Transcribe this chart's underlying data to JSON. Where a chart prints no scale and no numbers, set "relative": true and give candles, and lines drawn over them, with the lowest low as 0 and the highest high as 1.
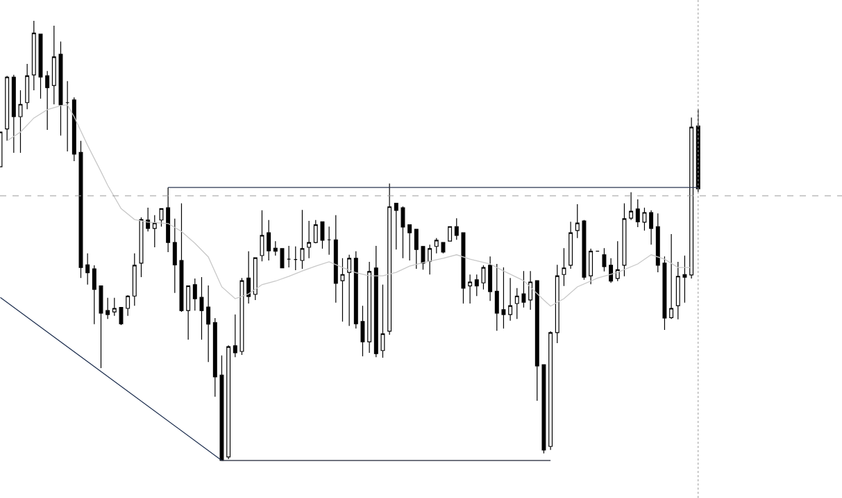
{
  "chart_data": {
    "type": "candlestick",
    "relative": true,
    "categories": [
      null,
      null,
      null,
      null,
      null,
      null,
      null,
      null,
      null,
      null,
      null,
      null,
      null,
      null,
      null,
      null,
      null,
      null,
      null,
      null,
      null,
      null,
      null,
      null,
      null,
      null,
      null,
      null,
      null,
      null,
      null,
      null,
      null,
      null,
      null,
      null,
      null,
      null,
      null,
      null,
      null,
      null,
      null,
      null,
      null,
      null,
      null,
      null,
      null,
      null,
      null,
      null,
      null,
      null,
      null,
      null,
      null,
      null,
      null,
      null,
      null,
      null,
      null,
      null,
      null,
      null,
      null,
      null,
      null,
      null,
      null,
      null,
      null,
      null,
      null,
      null,
      null,
      null,
      null,
      null,
      null,
      null,
      null,
      null,
      null,
      null,
      null,
      null,
      null,
      null,
      null,
      null,
      null,
      null,
      null,
      null,
      null,
      null,
      null,
      null,
      null,
      null,
      null,
      null,
      null
    ],
    "ohlc": [
      [
        0.668,
        0.747,
        0.668,
        0.747
      ],
      [
        0.754,
        0.875,
        0.727,
        0.872
      ],
      [
        0.872,
        0.877,
        0.7,
        0.782
      ],
      [
        0.782,
        0.842,
        0.7,
        0.81
      ],
      [
        0.814,
        0.902,
        0.799,
        0.875
      ],
      [
        0.877,
        1.0,
        0.842,
        0.972
      ],
      [
        0.97,
        0.97,
        0.823,
        0.872
      ],
      [
        0.875,
        0.886,
        0.752,
        0.848
      ],
      [
        0.853,
        0.989,
        0.81,
        0.918
      ],
      [
        0.924,
        0.953,
        0.739,
        0.809
      ],
      [
        0.814,
        0.863,
        0.703,
        0.814
      ],
      [
        0.82,
        0.826,
        0.681,
        0.697
      ],
      [
        0.701,
        0.727,
        0.415,
        0.439
      ],
      [
        0.445,
        0.471,
        0.4,
        0.427
      ],
      [
        0.436,
        0.444,
        0.31,
        0.389
      ],
      [
        0.397,
        0.397,
        0.21,
        0.335
      ],
      [
        0.341,
        0.37,
        0.322,
        0.332
      ],
      [
        0.338,
        0.37,
        0.329,
        0.346
      ],
      [
        0.348,
        0.349,
        0.308,
        0.311
      ],
      [
        0.346,
        0.376,
        0.329,
        0.374
      ],
      [
        0.374,
        0.471,
        0.352,
        0.444
      ],
      [
        0.449,
        0.553,
        0.417,
        0.548
      ],
      [
        0.547,
        0.575,
        0.521,
        0.528
      ],
      [
        0.528,
        0.558,
        0.485,
        0.54
      ],
      [
        0.547,
        0.573,
        0.532,
        0.573
      ],
      [
        0.575,
        0.621,
        0.474,
        0.496
      ],
      [
        0.496,
        0.55,
        0.381,
        0.445
      ],
      [
        0.455,
        0.585,
        0.338,
        0.341
      ],
      [
        0.341,
        0.397,
        0.275,
        0.397
      ],
      [
        0.4,
        0.414,
        0.341,
        0.368
      ],
      [
        0.371,
        0.417,
        0.275,
        0.341
      ],
      [
        0.349,
        0.398,
        0.224,
        0.31
      ],
      [
        0.314,
        0.324,
        0.145,
        0.19
      ],
      [
        0.194,
        0.239,
        0,
        0
      ],
      [
        0.008,
        0.262,
        0.003,
        0.259
      ],
      [
        0.261,
        0.332,
        0.235,
        0.245
      ],
      [
        0.248,
        0.415,
        0.24,
        0.409
      ],
      [
        0.415,
        0.476,
        0.357,
        0.373
      ],
      [
        0.378,
        0.461,
        0.365,
        0.461
      ],
      [
        0.466,
        0.569,
        0.453,
        0.512
      ],
      [
        0.518,
        0.547,
        0.455,
        0.477
      ],
      [
        0.483,
        0.499,
        0.466,
        0.476
      ],
      [
        0.482,
        0.483,
        0.438,
        0.438
      ],
      [
        0.458,
        0.488,
        0.439,
        0.458
      ],
      [
        0.457,
        0.487,
        0.433,
        0.457
      ],
      [
        0.455,
        0.57,
        0.436,
        0.482
      ],
      [
        0.485,
        0.545,
        0.46,
        0.496
      ],
      [
        0.496,
        0.547,
        0.494,
        0.536
      ],
      [
        0.543,
        0.543,
        0.482,
        0.501
      ],
      [
        0.502,
        0.532,
        0.468,
        0.502
      ],
      [
        0.502,
        0.558,
        0.359,
        0.403
      ],
      [
        0.409,
        0.46,
        0.316,
        0.423
      ],
      [
        0.428,
        0.468,
        0.306,
        0.46
      ],
      [
        0.46,
        0.476,
        0.3,
        0.311
      ],
      [
        0.316,
        0.352,
        0.237,
        0.27
      ],
      [
        0.27,
        0.452,
        0.245,
        0.43
      ],
      [
        0.438,
        0.488,
        0.235,
        0.243
      ],
      [
        0.25,
        0.4,
        0.234,
        0.288
      ],
      [
        0.294,
        0.63,
        0.286,
        0.577
      ],
      [
        0.585,
        0.585,
        0.48,
        0.569
      ],
      [
        0.575,
        0.578,
        0.46,
        0.531
      ],
      [
        0.536,
        0.536,
        0.455,
        0.518
      ],
      [
        0.526,
        0.526,
        0.436,
        0.48
      ],
      [
        0.487,
        0.487,
        0.434,
        0.449
      ],
      [
        0.453,
        0.491,
        0.423,
        0.482
      ],
      [
        0.487,
        0.506,
        0.471,
        0.501
      ],
      [
        0.496,
        0.496,
        0.471,
        0.474
      ],
      [
        0.499,
        0.532,
        0.499,
        0.532
      ],
      [
        0.532,
        0.551,
        0.502,
        0.512
      ],
      [
        0.518,
        0.518,
        0.357,
        0.392
      ],
      [
        0.397,
        0.423,
        0.357,
        0.406
      ],
      [
        0.411,
        0.423,
        0.374,
        0.397
      ],
      [
        0.404,
        0.444,
        0.389,
        0.439
      ],
      [
        0.444,
        0.464,
        0.363,
        0.384
      ],
      [
        0.385,
        0.447,
        0.295,
        0.335
      ],
      [
        0.343,
        0.439,
        0.3,
        0.332
      ],
      [
        0.332,
        0.415,
        0.318,
        0.352
      ],
      [
        0.357,
        0.392,
        0.322,
        0.374
      ],
      [
        0.379,
        0.431,
        0.348,
        0.36
      ],
      [
        0.365,
        0.431,
        0.343,
        0.406
      ],
      [
        0.409,
        0.409,
        0.136,
        0.215
      ],
      [
        0.218,
        0.218,
        0.016,
        0.024
      ],
      [
        0.032,
        0.294,
        0.024,
        0.291
      ],
      [
        0.291,
        0.445,
        0.267,
        0.42
      ],
      [
        0.423,
        0.483,
        0.397,
        0.438
      ],
      [
        0.444,
        0.543,
        0.436,
        0.518
      ],
      [
        0.523,
        0.583,
        0.506,
        0.54
      ],
      [
        0.545,
        0.547,
        0.411,
        0.417
      ],
      [
        0.42,
        0.482,
        0.401,
        0.476
      ],
      [
        0.476,
        0.476,
        0.476,
        0.476
      ],
      [
        0.468,
        0.483,
        0.43,
        0.441
      ],
      [
        0.444,
        0.46,
        0.404,
        0.408
      ],
      [
        0.414,
        0.499,
        0.408,
        0.434
      ],
      [
        0.444,
        0.585,
        0.419,
        0.55
      ],
      [
        0.551,
        0.61,
        0.547,
        0.567
      ],
      [
        0.572,
        0.594,
        0.531,
        0.543
      ],
      [
        0.542,
        0.575,
        0.523,
        0.564
      ],
      [
        0.564,
        0.569,
        0.491,
        0.528
      ],
      [
        0.532,
        0.562,
        0.428,
        0.444
      ],
      [
        0.449,
        0.464,
        0.297,
        0.324
      ],
      [
        0.325,
        0.515,
        0.322,
        0.346
      ],
      [
        0.352,
        0.452,
        0.321,
        0.419
      ],
      [
        0.423,
        0.466,
        0.359,
        0.417
      ],
      [
        0.422,
        0.78,
        0.414,
        0.758
      ],
      [
        0.761,
        0.799,
        0.61,
        0.618
      ]
    ],
    "series": [
      {
        "type": "line",
        "color": "#c8c8c8",
        "values": [
          null,
          0.727,
          null,
          0.747,
          null,
          0.779,
          null,
          0.798,
          null,
          0.807,
          0.809,
          0.782,
          null,
          0.717,
          null,
          0.657,
          0.626,
          null,
          0.573,
          null,
          0.548,
          null,
          0.542,
          null,
          0.54,
          0.539,
          null,
          0.521,
          null,
          0.494,
          null,
          0.463,
          null,
          0.395,
          null,
          0.368,
          null,
          0.379,
          null,
          0.4,
          null,
          0.408,
          null,
          0.419,
          null,
          0.431,
          null,
          0.442,
          null,
          0.452,
          null,
          0.439,
          null,
          0.427,
          null,
          0.42,
          null,
          0.42,
          null,
          0.428,
          null,
          0.442,
          null,
          0.45,
          null,
          null,
          0.46,
          null,
          0.468,
          null,
          0.458,
          null,
          null,
          0.447,
          null,
          0.431,
          null,
          null,
          0.409,
          null,
          null,
          0.365,
          0.351,
          null,
          0.368,
          null,
          0.395,
          null,
          null,
          0.415,
          null,
          null,
          0.428,
          null,
          null,
          0.447,
          null,
          0.468,
          null,
          0.458,
          null,
          0.439,
          null,
          0.439,
          null
        ]
      },
      {
        "type": "line",
        "color": "#1f3050",
        "values": [
          0.371,
          null,
          null,
          null,
          null,
          null,
          null,
          null,
          null,
          null,
          null,
          null,
          null,
          null,
          null,
          null,
          null,
          null,
          null,
          null,
          null,
          null,
          null,
          null,
          null,
          null,
          null,
          null,
          null,
          null,
          null,
          null,
          null,
          0,
          null,
          null,
          null,
          null,
          null,
          null,
          null,
          null,
          null,
          null,
          null,
          null,
          null,
          null,
          null,
          null,
          null,
          null,
          null,
          null,
          null,
          null,
          null,
          null,
          null,
          null,
          null,
          null,
          null,
          null,
          null,
          null,
          null,
          null,
          null,
          null,
          null,
          null,
          null,
          null,
          null,
          null,
          null,
          null,
          null,
          null,
          null,
          null,
          null,
          null,
          null,
          null,
          null,
          null,
          null,
          null,
          null,
          null,
          null,
          null,
          null,
          null,
          null,
          null,
          null,
          null,
          null,
          null,
          null,
          null,
          null
        ]
      },
      {
        "type": "line",
        "color": "#2a3550",
        "values": [
          null,
          null,
          null,
          null,
          null,
          null,
          null,
          null,
          null,
          null,
          null,
          null,
          null,
          null,
          null,
          null,
          null,
          null,
          null,
          null,
          null,
          null,
          null,
          null,
          null,
          0.621,
          null,
          null,
          null,
          null,
          null,
          null,
          null,
          null,
          null,
          null,
          null,
          null,
          null,
          null,
          null,
          null,
          null,
          null,
          null,
          null,
          null,
          null,
          null,
          null,
          null,
          null,
          null,
          null,
          null,
          null,
          null,
          null,
          null,
          null,
          null,
          null,
          null,
          null,
          null,
          null,
          null,
          null,
          null,
          null,
          null,
          null,
          null,
          null,
          null,
          null,
          null,
          null,
          null,
          null,
          null,
          null,
          null,
          null,
          null,
          null,
          null,
          null,
          null,
          null,
          null,
          null,
          null,
          null,
          null,
          null,
          null,
          null,
          null,
          null,
          null,
          null,
          null,
          null,
          0.621
        ]
      },
      {
        "type": "line",
        "color": "#404654",
        "values": [
          null,
          null,
          null,
          null,
          null,
          null,
          null,
          null,
          null,
          null,
          null,
          null,
          null,
          null,
          null,
          null,
          null,
          null,
          null,
          null,
          null,
          null,
          null,
          null,
          null,
          null,
          null,
          null,
          null,
          null,
          null,
          null,
          null,
          0,
          null,
          null,
          null,
          null,
          null,
          null,
          null,
          null,
          null,
          null,
          null,
          null,
          null,
          null,
          null,
          null,
          null,
          null,
          null,
          null,
          null,
          null,
          null,
          null,
          null,
          null,
          null,
          null,
          null,
          null,
          null,
          null,
          null,
          null,
          null,
          null,
          null,
          null,
          null,
          null,
          null,
          null,
          null,
          null,
          null,
          null,
          null,
          null,
          0,
          null,
          null,
          null,
          null,
          null,
          null,
          null,
          null,
          null,
          null,
          null,
          null,
          null,
          null,
          null,
          null,
          null,
          null,
          null,
          null,
          null,
          null
        ]
      }
    ],
    "ref_lines": [
      {
        "axis": "y",
        "value": 0.602,
        "color": "#9a9a9a",
        "line_style": "dashed"
      }
    ]
  }
}
